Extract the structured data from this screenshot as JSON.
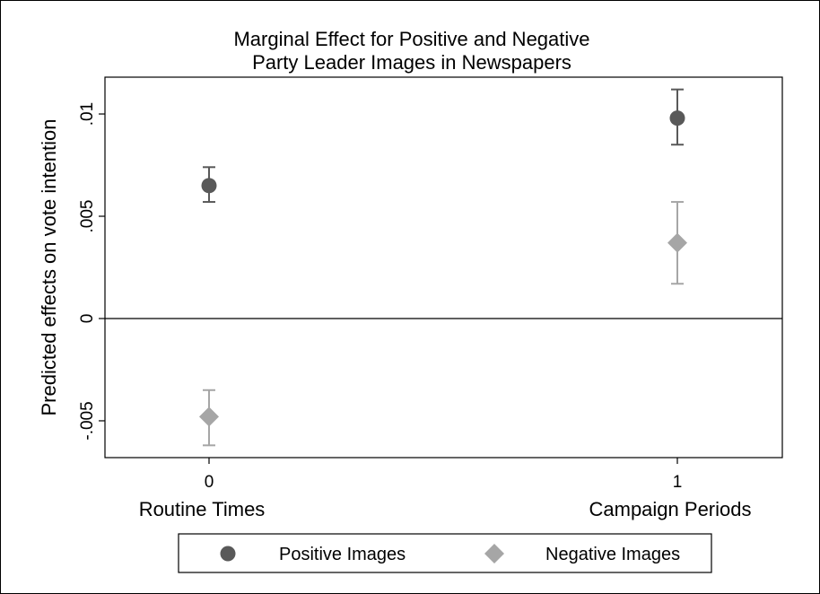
{
  "chart_data": {
    "type": "scatter",
    "title": [
      "Marginal Effect for Positive and Negative",
      "Party Leader Images in Newspapers"
    ],
    "ylabel": "Predicted effects on vote intention",
    "xlabel": "",
    "x": [
      0,
      1
    ],
    "x_tick_labels": [
      "0",
      "1"
    ],
    "categories": [
      "Routine Times",
      "Campaign Periods"
    ],
    "ylim": [
      -0.0068,
      0.0118
    ],
    "yticks": [
      -0.005,
      0,
      0.005,
      0.01
    ],
    "ytick_labels": [
      "-.005",
      "0",
      ".005",
      ".01"
    ],
    "reference_line": 0,
    "grid": false,
    "legend_position": "bottom",
    "series": [
      {
        "name": "Positive Images",
        "marker": "circle",
        "color": "#595959",
        "errorbar_color": "#595959",
        "values": [
          0.0065,
          0.0098
        ],
        "ci_low": [
          0.0057,
          0.0085
        ],
        "ci_high": [
          0.0074,
          0.0112
        ]
      },
      {
        "name": "Negative Images",
        "marker": "diamond",
        "color": "#a6a6a6",
        "errorbar_color": "#a6a6a6",
        "values": [
          -0.0048,
          0.0037
        ],
        "ci_low": [
          -0.0062,
          0.0017
        ],
        "ci_high": [
          -0.0035,
          0.0057
        ]
      }
    ]
  }
}
